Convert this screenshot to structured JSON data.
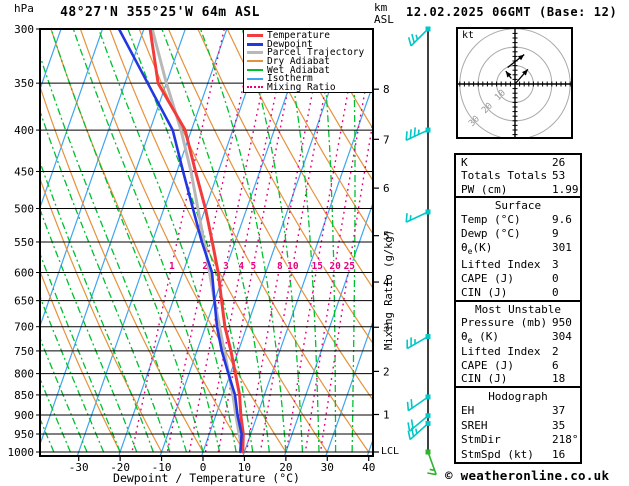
{
  "title": "48°27'N 355°25'W 64m ASL",
  "datetime": "12.02.2025 06GMT (Base: 12)",
  "footer": "© weatheronline.co.uk",
  "axes": {
    "pressure_unit": "hPa",
    "altitude_unit_lines": [
      "km",
      "ASL"
    ],
    "temp_label": "Dewpoint / Temperature (°C)",
    "mixing_label": "Mixing Ratio (g/kg)",
    "lcl": "LCL",
    "hodo_unit": "kt"
  },
  "colors": {
    "temperature": "#f23c3c",
    "dewpoint": "#2336e1",
    "parcel": "#b8b8b8",
    "dry_adiabat": "#e6923c",
    "wet_adiabat": "#00c030",
    "isotherm": "#3fa5ef",
    "mixing_ratio": "#e6007d",
    "barb": "#00c8c8",
    "surface_barb": "#2cb42c",
    "grid": "#000000",
    "hodo_ring": "#aaaaaa"
  },
  "legend": {
    "items": [
      {
        "label": "Temperature",
        "color": "#f23c3c",
        "weight": 3,
        "dotted": false
      },
      {
        "label": "Dewpoint",
        "color": "#2336e1",
        "weight": 3,
        "dotted": false
      },
      {
        "label": "Parcel Trajectory",
        "color": "#b8b8b8",
        "weight": 3,
        "dotted": false
      },
      {
        "label": "Dry Adiabat",
        "color": "#e6923c",
        "weight": 2,
        "dotted": false
      },
      {
        "label": "Wet Adiabat",
        "color": "#00c030",
        "weight": 2,
        "dotted": false
      },
      {
        "label": "Isotherm",
        "color": "#3fa5ef",
        "weight": 2,
        "dotted": false
      },
      {
        "label": "Mixing Ratio",
        "color": "#e6007d",
        "weight": 2,
        "dotted": true
      }
    ]
  },
  "panels": [
    {
      "header": null,
      "rows": [
        [
          "K",
          "26"
        ],
        [
          "Totals Totals",
          "53"
        ],
        [
          "PW (cm)",
          "1.99"
        ]
      ]
    },
    {
      "header": "Surface",
      "rows": [
        [
          "Temp (°C)",
          "9.6"
        ],
        [
          "Dewp (°C)",
          "9"
        ],
        [
          "θe(K)",
          "301"
        ],
        [
          "Lifted Index",
          "3"
        ],
        [
          "CAPE (J)",
          "0"
        ],
        [
          "CIN (J)",
          "0"
        ]
      ]
    },
    {
      "header": "Most Unstable",
      "rows": [
        [
          "Pressure (mb)",
          "950"
        ],
        [
          "θe (K)",
          "304"
        ],
        [
          "Lifted Index",
          "2"
        ],
        [
          "CAPE (J)",
          "6"
        ],
        [
          "CIN (J)",
          "18"
        ]
      ]
    },
    {
      "header": "Hodograph",
      "rows": [
        [
          "EH",
          "37"
        ],
        [
          "SREH",
          "35"
        ],
        [
          "StmDir",
          "218°"
        ],
        [
          "StmSpd (kt)",
          "16"
        ]
      ]
    }
  ],
  "chart_data": {
    "type": "skewt-logp",
    "pressure_axis": {
      "label": "hPa",
      "range": [
        300,
        1000
      ],
      "ticks": [
        300,
        350,
        400,
        450,
        500,
        550,
        600,
        650,
        700,
        750,
        800,
        850,
        900,
        950,
        1000
      ]
    },
    "temp_axis": {
      "label": "Dewpoint / Temperature (°C)",
      "unit": "°C",
      "ticks": [
        -30,
        -20,
        -10,
        0,
        10,
        20,
        30,
        40
      ]
    },
    "altitude_axis": {
      "label": "km ASL",
      "ticks": [
        1,
        2,
        3,
        4,
        5,
        6,
        7,
        8
      ],
      "lcl_label": "LCL"
    },
    "mixing_ratio_lines": [
      1,
      2,
      3,
      4,
      5,
      8,
      10,
      15,
      20,
      25
    ],
    "isotherms": {
      "start": -80,
      "end": 40,
      "step": 10
    },
    "dry_adiabats": {
      "start": -20,
      "end": 180,
      "step": 10
    },
    "wet_adiabats": {
      "start": -64,
      "end": 36,
      "step": 4
    },
    "sounding": {
      "pressure": [
        1000,
        950,
        900,
        850,
        800,
        750,
        700,
        650,
        600,
        550,
        500,
        450,
        400,
        350,
        300
      ],
      "temperature": [
        9.6,
        8.2,
        6.0,
        4.0,
        1.2,
        -1.8,
        -5.3,
        -8.3,
        -11.5,
        -15.5,
        -20.0,
        -25.5,
        -31.5,
        -42.0,
        -48.5
      ],
      "dewpoint": [
        9.0,
        7.8,
        5.2,
        2.9,
        -0.5,
        -4.0,
        -7.2,
        -10.0,
        -13.0,
        -18.0,
        -23.0,
        -28.5,
        -34.5,
        -44.5,
        -56.0
      ],
      "parcel": [
        9.6,
        7.2,
        4.8,
        2.4,
        -0.4,
        -3.4,
        -6.6,
        -10.0,
        -13.6,
        -17.5,
        -21.8,
        -26.6,
        -32.5,
        -40.0,
        -48.0
      ]
    },
    "wind_barbs": [
      {
        "p": 300,
        "spd": 25,
        "dir": 225
      },
      {
        "p": 400,
        "spd": 35,
        "dir": 245
      },
      {
        "p": 505,
        "spd": 15,
        "dir": 245
      },
      {
        "p": 720,
        "spd": 25,
        "dir": 240
      },
      {
        "p": 855,
        "spd": 20,
        "dir": 235
      },
      {
        "p": 902,
        "spd": 20,
        "dir": 230
      },
      {
        "p": 922,
        "spd": 25,
        "dir": 228
      },
      {
        "p": 1000,
        "spd": 15,
        "dir": 160,
        "surface": true
      }
    ],
    "hodograph": {
      "unit": "kt",
      "rings": [
        10,
        20,
        30
      ],
      "arrows": [
        {
          "from": [
            0,
            0
          ],
          "to": [
            7,
            8
          ]
        },
        {
          "from": [
            -2,
            3
          ],
          "to": [
            -5,
            7
          ]
        },
        {
          "from": [
            -4,
            9
          ],
          "to": [
            5,
            16
          ]
        }
      ],
      "storm_motion": {
        "dir_deg": 218,
        "speed_kt": 16
      }
    },
    "stats": {
      "K": 26,
      "TotalsTotals": 53,
      "PW_cm": 1.99,
      "surface": {
        "temp_c": 9.6,
        "dewp_c": 9,
        "theta_e_k": 301,
        "lifted_index": 3,
        "cape_j": 0,
        "cin_j": 0
      },
      "most_unstable": {
        "pressure_mb": 950,
        "theta_e_k": 304,
        "lifted_index": 2,
        "cape_j": 6,
        "cin_j": 18
      },
      "hodograph": {
        "EH": 37,
        "SREH": 35,
        "StmDir": "218°",
        "StmSpd_kt": 16
      }
    }
  }
}
